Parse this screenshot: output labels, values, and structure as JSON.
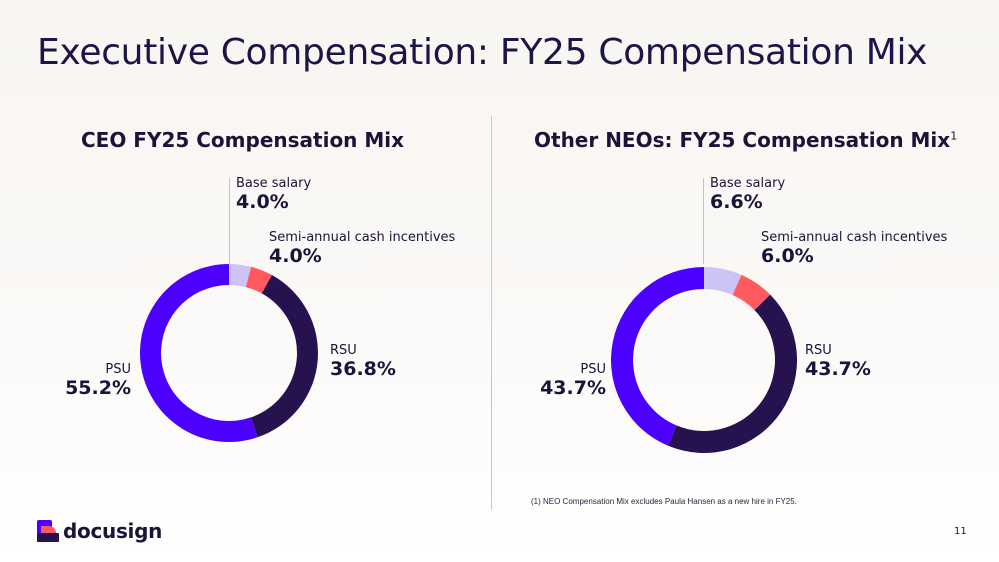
{
  "title": "Executive Compensation: FY25 Compensation Mix",
  "chart_data": [
    {
      "type": "pie",
      "title": "CEO FY25 Compensation Mix",
      "categories": [
        "Base salary",
        "Semi-annual cash incentives",
        "RSU",
        "PSU"
      ],
      "values": [
        4.0,
        4.0,
        36.8,
        55.2
      ],
      "value_labels": [
        "4.0%",
        "4.0%",
        "36.8%",
        "55.2%"
      ],
      "colors": [
        "#cdc3f7",
        "#ff5a5f",
        "#26124f",
        "#4c00ff"
      ],
      "style": "donut"
    },
    {
      "type": "pie",
      "title": "Other NEOs: FY25 Compensation Mix",
      "title_footnote_marker": "1",
      "categories": [
        "Base salary",
        "Semi-annual cash incentives",
        "RSU",
        "PSU"
      ],
      "values": [
        6.6,
        6.0,
        43.7,
        43.7
      ],
      "value_labels": [
        "6.6%",
        "6.0%",
        "43.7%",
        "43.7%"
      ],
      "colors": [
        "#cdc3f7",
        "#ff5a5f",
        "#26124f",
        "#4c00ff"
      ],
      "style": "donut"
    }
  ],
  "footnote": "(1) NEO Compensation Mix excludes Paula Hansen as a new hire in FY25.",
  "logo": {
    "text": "docusign",
    "icon": "docusign-logo-icon"
  },
  "page_number": "11"
}
